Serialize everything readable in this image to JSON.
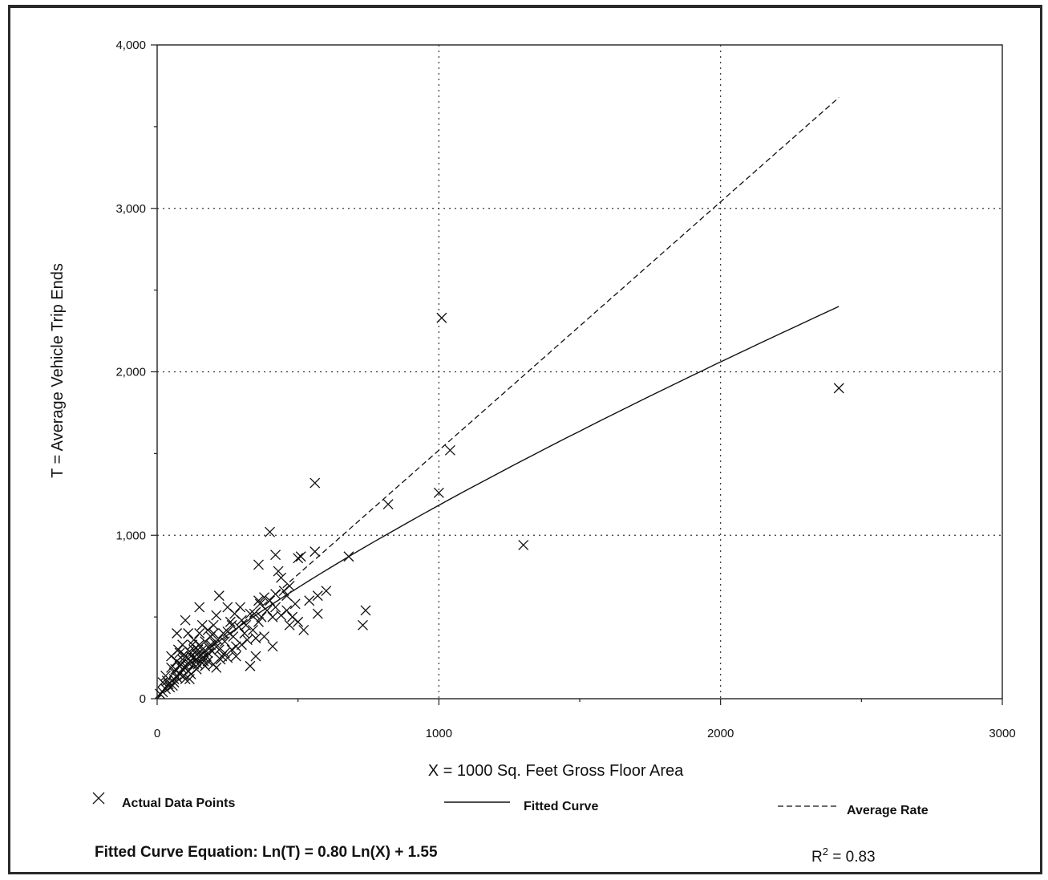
{
  "chart_data": {
    "type": "scatter",
    "xlabel": "X = 1000 Sq. Feet Gross Floor Area",
    "ylabel": "T = Average Vehicle Trip Ends",
    "xlim": [
      0,
      3000
    ],
    "ylim": [
      0,
      4000
    ],
    "x_ticks": [
      0,
      1000,
      2000,
      3000
    ],
    "y_ticks": [
      0,
      1000,
      2000,
      3000,
      4000
    ],
    "x_tick_labels": [
      "0",
      "1000",
      "2000",
      "3000"
    ],
    "y_tick_labels": [
      "0",
      "1,000",
      "2,000",
      "3,000",
      "4,000"
    ],
    "x_minor_ticks": [
      500,
      1500,
      2500
    ],
    "y_minor_ticks": [
      500,
      1500,
      2500,
      3500
    ],
    "grid": true,
    "legend_placement": "bottom",
    "legend": {
      "points_label": "Actual Data Points",
      "fitted_label": "Fitted Curve",
      "average_label": "Average Rate"
    },
    "equation_text": "Fitted Curve Equation:  Ln(T) = 0.80 Ln(X) + 1.55",
    "r2_prefix": "R",
    "r2_exponent": "2",
    "r2_value": " = 0.83",
    "fitted_curve": {
      "coefficient": 0.8,
      "intercept": 1.55,
      "x_range": [
        10,
        2420
      ]
    },
    "average_rate": {
      "rate": 1.52,
      "x_range": [
        0,
        2420
      ]
    },
    "series": [
      {
        "name": "Actual Data Points",
        "points": [
          [
            1010,
            2330
          ],
          [
            2420,
            1900
          ],
          [
            1040,
            1520
          ],
          [
            1000,
            1260
          ],
          [
            560,
            1320
          ],
          [
            820,
            1190
          ],
          [
            1300,
            940
          ],
          [
            400,
            1020
          ],
          [
            420,
            880
          ],
          [
            360,
            820
          ],
          [
            500,
            860
          ],
          [
            510,
            870
          ],
          [
            560,
            900
          ],
          [
            680,
            870
          ],
          [
            430,
            780
          ],
          [
            440,
            740
          ],
          [
            740,
            540
          ],
          [
            730,
            450
          ],
          [
            570,
            520
          ],
          [
            600,
            660
          ],
          [
            570,
            630
          ],
          [
            540,
            600
          ],
          [
            470,
            690
          ],
          [
            450,
            660
          ],
          [
            380,
            620
          ],
          [
            400,
            600
          ],
          [
            420,
            640
          ],
          [
            460,
            630
          ],
          [
            490,
            580
          ],
          [
            520,
            420
          ],
          [
            470,
            450
          ],
          [
            410,
            500
          ],
          [
            410,
            320
          ],
          [
            350,
            260
          ],
          [
            330,
            200
          ],
          [
            350,
            370
          ],
          [
            360,
            600
          ],
          [
            330,
            520
          ],
          [
            300,
            480
          ],
          [
            290,
            440
          ],
          [
            270,
            380
          ],
          [
            280,
            320
          ],
          [
            250,
            560
          ],
          [
            260,
            470
          ],
          [
            250,
            410
          ],
          [
            240,
            350
          ],
          [
            220,
            630
          ],
          [
            210,
            510
          ],
          [
            200,
            450
          ],
          [
            200,
            400
          ],
          [
            190,
            330
          ],
          [
            180,
            280
          ],
          [
            150,
            560
          ],
          [
            160,
            450
          ],
          [
            170,
            350
          ],
          [
            160,
            300
          ],
          [
            160,
            250
          ],
          [
            170,
            200
          ],
          [
            150,
            400
          ],
          [
            130,
            360
          ],
          [
            130,
            300
          ],
          [
            120,
            260
          ],
          [
            110,
            220
          ],
          [
            130,
            210
          ],
          [
            140,
            180
          ],
          [
            100,
            480
          ],
          [
            110,
            400
          ],
          [
            90,
            330
          ],
          [
            80,
            280
          ],
          [
            90,
            240
          ],
          [
            80,
            200
          ],
          [
            70,
            400
          ],
          [
            70,
            230
          ],
          [
            60,
            160
          ],
          [
            60,
            120
          ],
          [
            50,
            190
          ],
          [
            50,
            260
          ],
          [
            40,
            90
          ],
          [
            30,
            60
          ],
          [
            30,
            140
          ],
          [
            20,
            40
          ],
          [
            20,
            100
          ],
          [
            10,
            30
          ],
          [
            100,
            120
          ],
          [
            120,
            150
          ],
          [
            140,
            240
          ],
          [
            160,
            220
          ],
          [
            180,
            230
          ],
          [
            200,
            210
          ],
          [
            210,
            190
          ],
          [
            230,
            260
          ],
          [
            220,
            300
          ],
          [
            240,
            280
          ],
          [
            250,
            250
          ],
          [
            280,
            260
          ],
          [
            300,
            330
          ],
          [
            310,
            400
          ],
          [
            320,
            360
          ],
          [
            340,
            420
          ],
          [
            360,
            470
          ],
          [
            370,
            500
          ],
          [
            380,
            380
          ],
          [
            390,
            540
          ],
          [
            420,
            560
          ],
          [
            440,
            510
          ],
          [
            460,
            540
          ],
          [
            480,
            500
          ],
          [
            500,
            470
          ],
          [
            190,
            380
          ],
          [
            180,
            420
          ],
          [
            150,
            330
          ],
          [
            140,
            270
          ],
          [
            130,
            250
          ],
          [
            120,
            230
          ],
          [
            110,
            170
          ],
          [
            100,
            200
          ],
          [
            90,
            180
          ],
          [
            80,
            150
          ],
          [
            70,
            130
          ],
          [
            60,
            100
          ],
          [
            55,
            80
          ],
          [
            45,
            70
          ],
          [
            35,
            110
          ],
          [
            75,
            300
          ],
          [
            95,
            270
          ],
          [
            105,
            250
          ],
          [
            115,
            290
          ],
          [
            125,
            330
          ],
          [
            145,
            300
          ],
          [
            155,
            270
          ],
          [
            165,
            230
          ],
          [
            175,
            260
          ],
          [
            185,
            310
          ],
          [
            195,
            290
          ],
          [
            205,
            340
          ],
          [
            215,
            360
          ],
          [
            235,
            400
          ],
          [
            265,
            450
          ],
          [
            275,
            520
          ],
          [
            295,
            560
          ],
          [
            315,
            450
          ],
          [
            345,
            520
          ],
          [
            365,
            580
          ],
          [
            265,
            300
          ],
          [
            225,
            240
          ],
          [
            145,
            210
          ],
          [
            85,
            210
          ],
          [
            65,
            180
          ],
          [
            95,
            140
          ],
          [
            115,
            120
          ]
        ]
      }
    ]
  }
}
